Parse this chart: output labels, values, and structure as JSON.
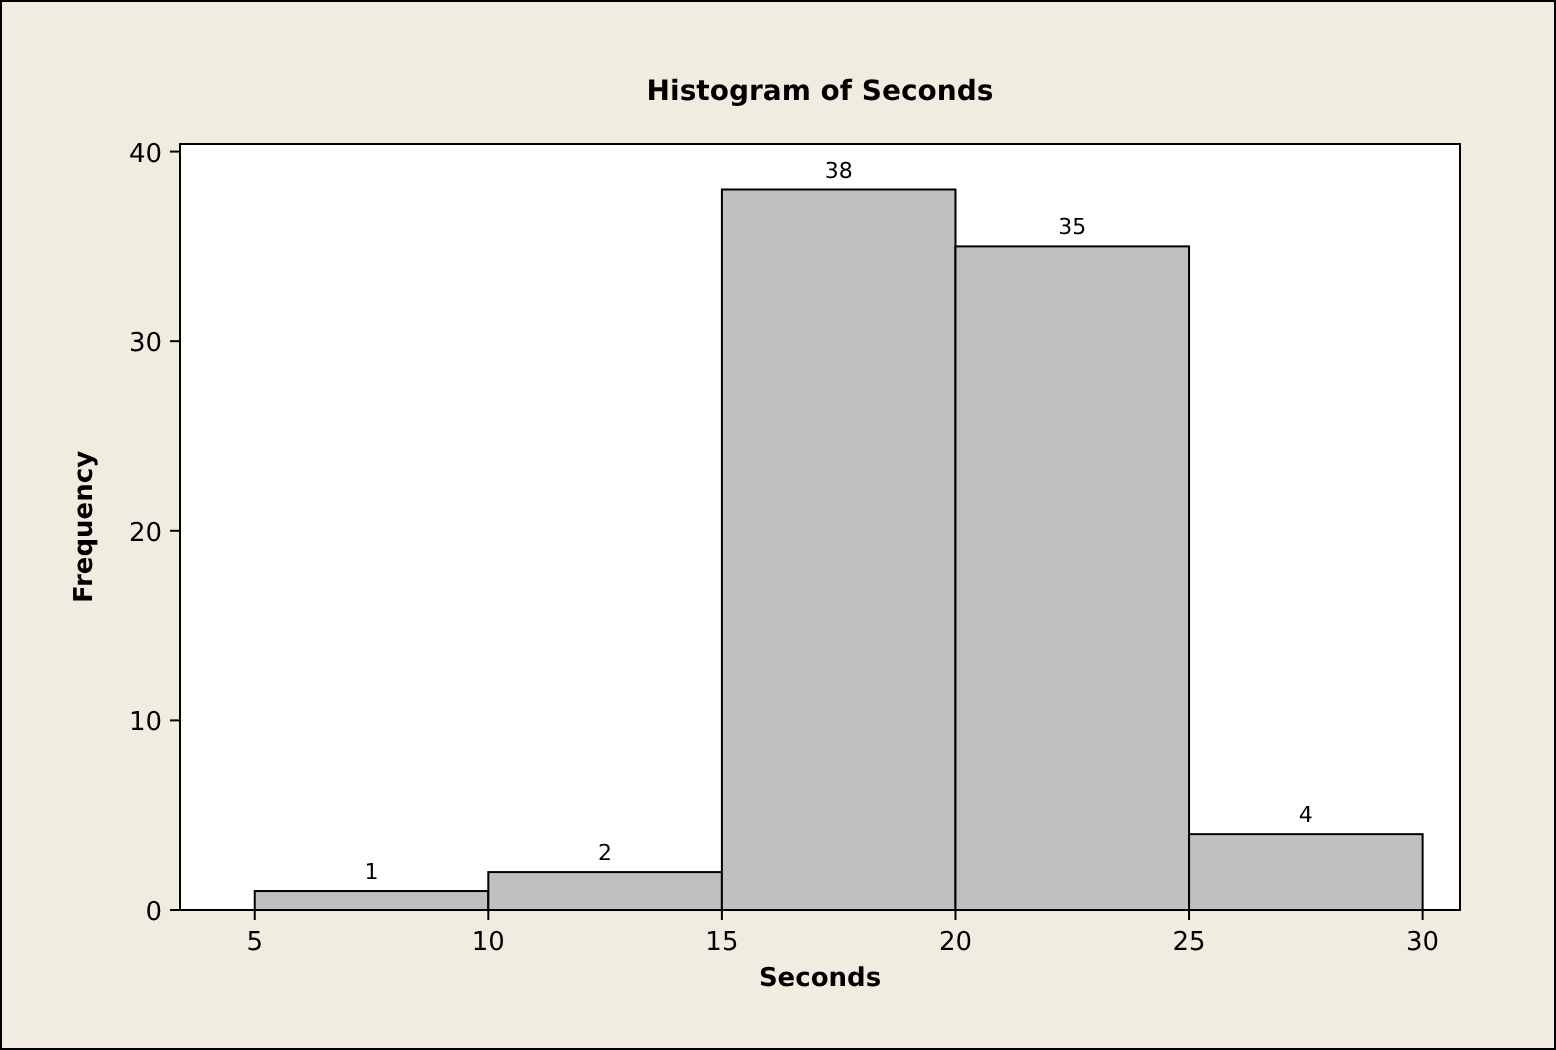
{
  "chart_data": {
    "type": "histogram",
    "title": "Histogram of Seconds",
    "xlabel": "Seconds",
    "ylabel": "Frequency",
    "bins": [
      5,
      10,
      15,
      20,
      25,
      30
    ],
    "values": [
      1,
      2,
      38,
      35,
      4
    ],
    "color": "#c0c0c0",
    "xlim": [
      3.4,
      30.8
    ],
    "xticks": [
      5,
      10,
      15,
      20,
      25,
      30
    ],
    "ylim": [
      0,
      40.4
    ],
    "yticks": [
      0,
      10,
      20,
      30,
      40
    ],
    "data_labels": true,
    "grid": false
  }
}
